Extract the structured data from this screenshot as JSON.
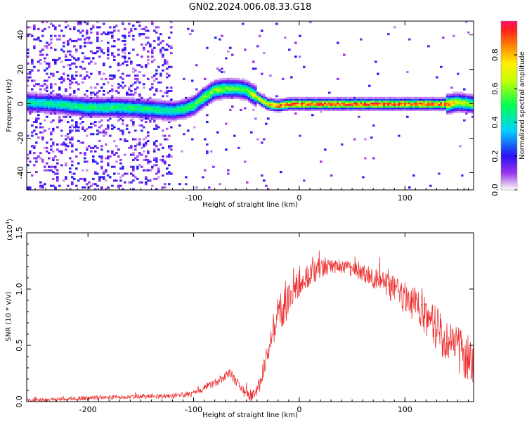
{
  "title": "GN02.2024.006.08.33.G18",
  "chart_data": [
    {
      "type": "heatmap",
      "name": "spectrogram",
      "xlabel": "Height of straight line (km)",
      "ylabel": "Frequency (Hz)",
      "xlim": [
        -258,
        165
      ],
      "ylim": [
        -50,
        48
      ],
      "xticks": [
        -200,
        -100,
        0,
        100
      ],
      "yticks": [
        -40,
        -20,
        0,
        20,
        40
      ],
      "colorbar": {
        "label": "Normalized spectral amplitude",
        "range": [
          0,
          1
        ],
        "ticks": [
          0.0,
          0.2,
          0.4,
          0.6,
          0.8
        ],
        "tick_labels": [
          "0.0",
          "0.2",
          "0.4",
          "0.6",
          "0.8"
        ]
      },
      "ridge": {
        "x": [
          -258,
          -230,
          -200,
          -170,
          -140,
          -120,
          -110,
          -100,
          -90,
          -80,
          -70,
          -60,
          -50,
          -42,
          -38,
          -30,
          -20,
          -10,
          0,
          30,
          60,
          90,
          120,
          140,
          150,
          165
        ],
        "y": [
          1,
          0,
          -2,
          -2,
          -3,
          -4,
          -3,
          -1,
          4,
          8,
          9,
          9,
          8,
          5,
          3,
          0,
          -1,
          0,
          0,
          0,
          0,
          0,
          0,
          0,
          1,
          0
        ],
        "peak": [
          0.45,
          0.45,
          0.5,
          0.5,
          0.5,
          0.45,
          0.5,
          0.55,
          0.6,
          0.6,
          0.6,
          0.55,
          0.55,
          0.7,
          0.75,
          0.85,
          0.9,
          0.95,
          0.95,
          0.95,
          0.95,
          0.95,
          0.95,
          0.9,
          0.7,
          0.6
        ]
      }
    },
    {
      "type": "line",
      "name": "snr",
      "xlabel": "Height of straight line (km)",
      "ylabel": "SNR (10 * v/v)",
      "scale_label": "(x10",
      "scale_exp": "4",
      "scale_close": ")",
      "xlim": [
        -258,
        165
      ],
      "ylim": [
        0,
        1.5
      ],
      "xticks": [
        -200,
        -100,
        0,
        100
      ],
      "yticks": [
        0.0,
        0.5,
        1.0,
        1.5
      ],
      "ytick_labels": [
        "0.0",
        "0.5",
        "1.0",
        "1.5"
      ],
      "line_color": "#ee3333",
      "envelope": {
        "x": [
          -258,
          -230,
          -200,
          -180,
          -160,
          -140,
          -120,
          -100,
          -90,
          -80,
          -70,
          -65,
          -60,
          -55,
          -50,
          -45,
          -40,
          -35,
          -30,
          -25,
          -20,
          -15,
          -10,
          -5,
          0,
          10,
          20,
          30,
          40,
          50,
          60,
          70,
          80,
          90,
          100,
          110,
          120,
          130,
          140,
          150,
          165
        ],
        "y": [
          0.01,
          0.02,
          0.03,
          0.04,
          0.04,
          0.05,
          0.05,
          0.07,
          0.12,
          0.16,
          0.22,
          0.25,
          0.18,
          0.1,
          0.05,
          0.05,
          0.08,
          0.22,
          0.45,
          0.65,
          0.78,
          0.85,
          0.9,
          0.98,
          1.05,
          1.12,
          1.18,
          1.2,
          1.2,
          1.18,
          1.15,
          1.1,
          1.05,
          1.0,
          0.92,
          0.85,
          0.75,
          0.65,
          0.55,
          0.45,
          0.35
        ]
      },
      "noise": {
        "x": [
          -258,
          -100,
          -40,
          -20,
          0,
          30,
          60,
          100,
          130,
          165
        ],
        "amp": [
          0.015,
          0.025,
          0.06,
          0.18,
          0.14,
          0.06,
          0.08,
          0.14,
          0.2,
          0.22
        ]
      }
    }
  ]
}
